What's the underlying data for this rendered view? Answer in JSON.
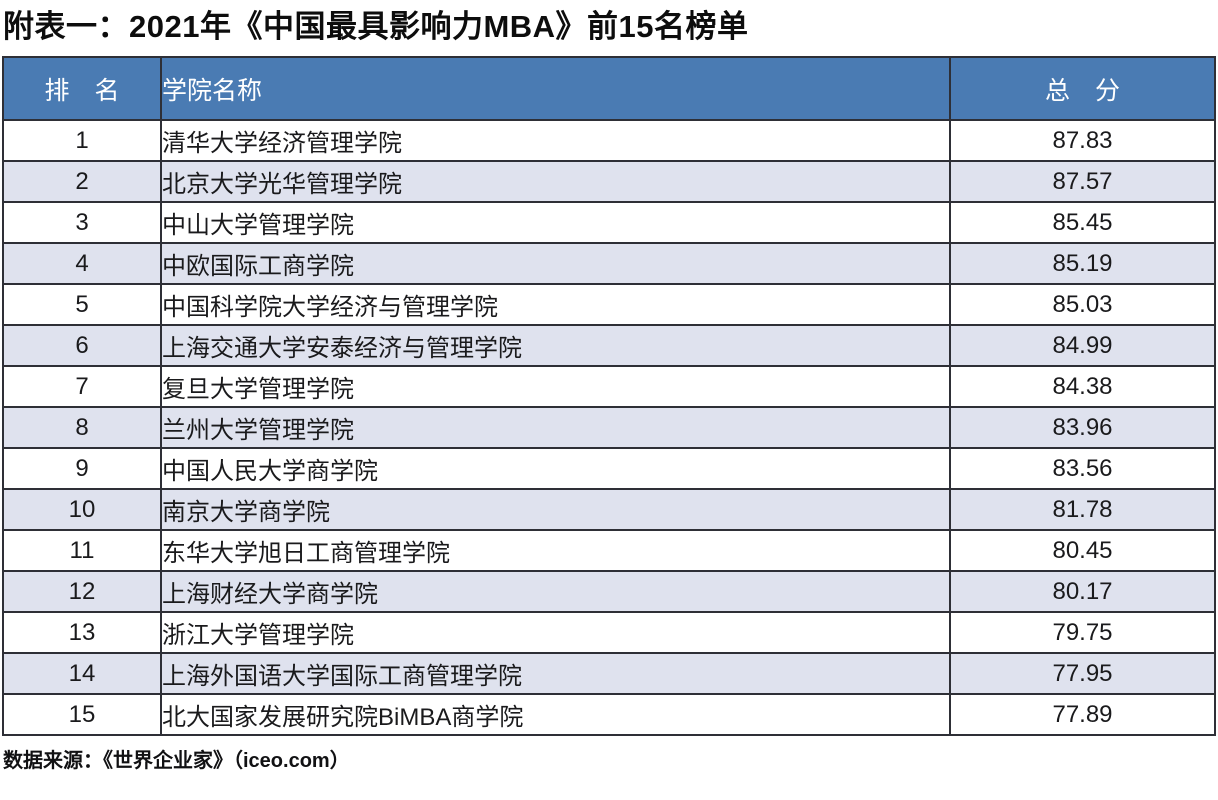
{
  "page": {
    "title": "附表一：2021年《中国最具影响力MBA》前15名榜单",
    "source_note": "数据来源：《世界企业家》（iceo.com）"
  },
  "colors": {
    "header_bg": "#4a7bb3",
    "header_text": "#ffffff",
    "alt_row_bg": "#dfe2ee",
    "border": "#2e2f36",
    "body_text": "#1a1a1c"
  },
  "table": {
    "columns": [
      {
        "key": "rank",
        "label": "排　名"
      },
      {
        "key": "name",
        "label": "学院名称"
      },
      {
        "key": "score",
        "label": "总　分"
      }
    ],
    "rows": [
      {
        "rank": "1",
        "name": "清华大学经济管理学院",
        "score": "87.83"
      },
      {
        "rank": "2",
        "name": "北京大学光华管理学院",
        "score": "87.57"
      },
      {
        "rank": "3",
        "name": "中山大学管理学院",
        "score": "85.45"
      },
      {
        "rank": "4",
        "name": "中欧国际工商学院",
        "score": "85.19"
      },
      {
        "rank": "5",
        "name": "中国科学院大学经济与管理学院",
        "score": "85.03"
      },
      {
        "rank": "6",
        "name": "上海交通大学安泰经济与管理学院",
        "score": "84.99"
      },
      {
        "rank": "7",
        "name": "复旦大学管理学院",
        "score": "84.38"
      },
      {
        "rank": "8",
        "name": "兰州大学管理学院",
        "score": "83.96"
      },
      {
        "rank": "9",
        "name": "中国人民大学商学院",
        "score": "83.56"
      },
      {
        "rank": "10",
        "name": "南京大学商学院",
        "score": "81.78"
      },
      {
        "rank": "11",
        "name": "东华大学旭日工商管理学院",
        "score": "80.45"
      },
      {
        "rank": "12",
        "name": "上海财经大学商学院",
        "score": "80.17"
      },
      {
        "rank": "13",
        "name": "浙江大学管理学院",
        "score": "79.75"
      },
      {
        "rank": "14",
        "name": "上海外国语大学国际工商管理学院",
        "score": "77.95"
      },
      {
        "rank": "15",
        "name": "北大国家发展研究院BiMBA商学院",
        "score": "77.89"
      }
    ]
  }
}
